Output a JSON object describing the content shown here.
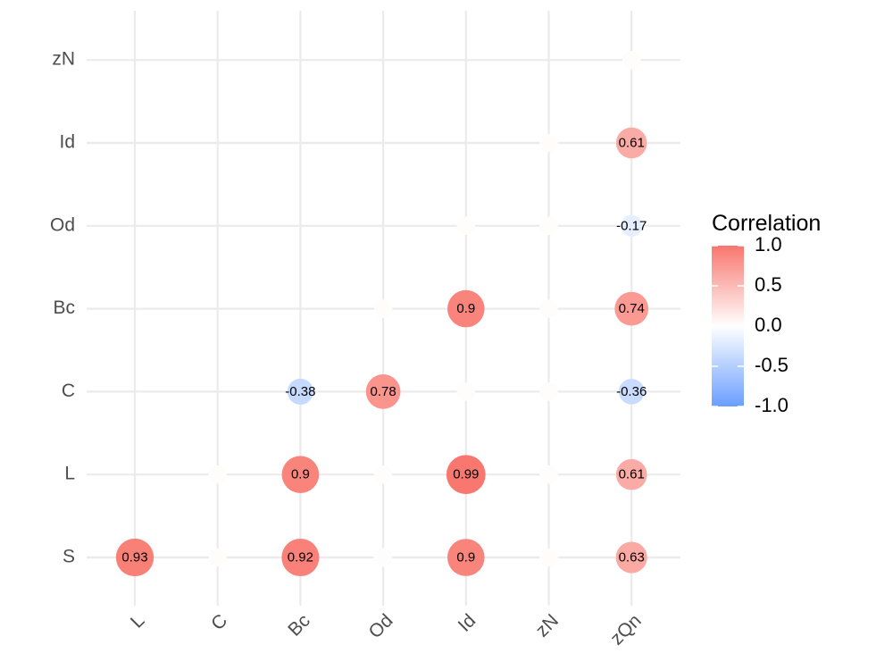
{
  "chart_data": {
    "type": "scatter",
    "x_categories": [
      "L",
      "C",
      "Bc",
      "Od",
      "Id",
      "zN",
      "zQn"
    ],
    "y_categories": [
      "S",
      "L",
      "C",
      "Bc",
      "Od",
      "Id",
      "zN"
    ],
    "cells": [
      {
        "x": "L",
        "y": "S",
        "value": 0.93,
        "label": "0.93"
      },
      {
        "x": "C",
        "y": "S",
        "value": 0.02,
        "label": ""
      },
      {
        "x": "Bc",
        "y": "S",
        "value": 0.92,
        "label": "0.92"
      },
      {
        "x": "Od",
        "y": "S",
        "value": 0.02,
        "label": ""
      },
      {
        "x": "Id",
        "y": "S",
        "value": 0.9,
        "label": "0.9"
      },
      {
        "x": "zN",
        "y": "S",
        "value": 0.02,
        "label": ""
      },
      {
        "x": "zQn",
        "y": "S",
        "value": 0.63,
        "label": "0.63"
      },
      {
        "x": "C",
        "y": "L",
        "value": 0.02,
        "label": ""
      },
      {
        "x": "Bc",
        "y": "L",
        "value": 0.9,
        "label": "0.9"
      },
      {
        "x": "Od",
        "y": "L",
        "value": 0.02,
        "label": ""
      },
      {
        "x": "Id",
        "y": "L",
        "value": 0.99,
        "label": "0.99"
      },
      {
        "x": "zN",
        "y": "L",
        "value": 0.02,
        "label": ""
      },
      {
        "x": "zQn",
        "y": "L",
        "value": 0.61,
        "label": "0.61"
      },
      {
        "x": "Bc",
        "y": "C",
        "value": -0.38,
        "label": "-0.38"
      },
      {
        "x": "Od",
        "y": "C",
        "value": 0.78,
        "label": "0.78"
      },
      {
        "x": "Id",
        "y": "C",
        "value": 0.02,
        "label": ""
      },
      {
        "x": "zN",
        "y": "C",
        "value": 0.02,
        "label": ""
      },
      {
        "x": "zQn",
        "y": "C",
        "value": -0.36,
        "label": "-0.36"
      },
      {
        "x": "Od",
        "y": "Bc",
        "value": 0.02,
        "label": ""
      },
      {
        "x": "Id",
        "y": "Bc",
        "value": 0.9,
        "label": "0.9"
      },
      {
        "x": "zN",
        "y": "Bc",
        "value": 0.02,
        "label": ""
      },
      {
        "x": "zQn",
        "y": "Bc",
        "value": 0.74,
        "label": "0.74"
      },
      {
        "x": "Id",
        "y": "Od",
        "value": 0.02,
        "label": ""
      },
      {
        "x": "zN",
        "y": "Od",
        "value": 0.02,
        "label": ""
      },
      {
        "x": "zQn",
        "y": "Od",
        "value": -0.17,
        "label": "-0.17"
      },
      {
        "x": "zN",
        "y": "Id",
        "value": 0.02,
        "label": ""
      },
      {
        "x": "zQn",
        "y": "Id",
        "value": 0.61,
        "label": "0.61"
      },
      {
        "x": "zQn",
        "y": "zN",
        "value": 0.02,
        "label": ""
      }
    ],
    "legend": {
      "title": "Correlation",
      "ticks": [
        "1.0",
        "0.5",
        "0.0",
        "-0.5",
        "-1.0"
      ],
      "range": [
        -1,
        1
      ],
      "low_color": "#6a9eff",
      "mid_color": "#ffffff",
      "high_color": "#f8766d",
      "placement": "right"
    },
    "grid": true
  }
}
